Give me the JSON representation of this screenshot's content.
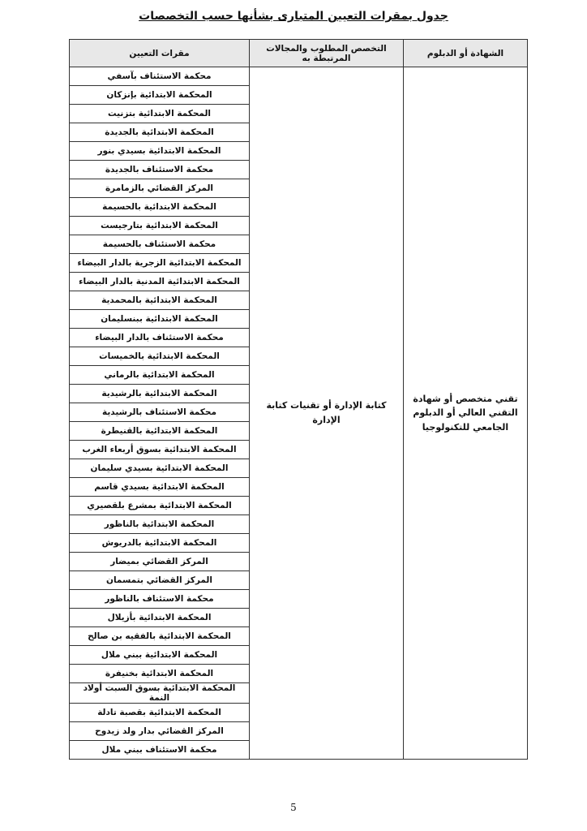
{
  "title": "جدول بمقرات التعيين المتبارى بشأنها حسب التخصصات",
  "table": {
    "headers": [
      "الشهادة أو الدبلوم",
      "التخصص المطلوب والمجالات المرتبطة به",
      "مقرات التعيين"
    ],
    "degree": "تقني متخصص أو شهادة التقني العالي أو الدبلوم الجامعي للتكنولوجيا",
    "specialty": "كتابة الإدارة أو تقنيات كتابة الإدارة",
    "locations": [
      "محكمة الاستئناف بآسفي",
      "المحكمة الابتدائية بإنزكان",
      "المحكمة الابتدائية بتزنيت",
      "المحكمة الابتدائية بالجديدة",
      "المحكمة الابتدائية بسيدي بنور",
      "محكمة الاستئناف بالجديدة",
      "المركز القضائي بالزمامرة",
      "المحكمة الابتدائية بالحسيمة",
      "المحكمة الابتدائية بتارجيست",
      "محكمة الاستئناف بالحسيمة",
      "المحكمة الابتدائية الزجرية بالدار البيضاء",
      "المحكمة الابتدائية المدنية بالدار البيضاء",
      "المحكمة الابتدائية بالمحمدية",
      "المحكمة الابتدائية ببنسليمان",
      "محكمة الاستئناف بالدار البيضاء",
      "المحكمة الابتدائية بالخميسات",
      "المحكمة الابتدائية بالرماني",
      "المحكمة الابتدائية بالرشيدية",
      "محكمة الاستئناف بالرشيدية",
      "المحكمة الابتدائية بالقنيطرة",
      "المحكمة الابتدائية بسوق أربعاء الغرب",
      "المحكمة الابتدائية بسيدي سليمان",
      "المحكمة الابتدائية بسيدي قاسم",
      "المحكمة الابتدائية بمشرع بلقصيري",
      "المحكمة الابتدائية بالناظور",
      "المحكمة الابتدائية بالدريوش",
      "المركز القضائي بميضار",
      "المركز القضائي بتمسمان",
      "محكمة الاستئناف بالناظور",
      "المحكمة الابتدائية بأزيلال",
      "المحكمة الابتدائية بالفقيه بن صالح",
      "المحكمة الابتدائية ببني ملال",
      "المحكمة الابتدائية بخنيفرة",
      "المحكمة الابتدائية بسوق السبت أولاد النمة",
      "المحكمة الابتدائية بقصبة تادلة",
      "المركز القضائي بدار ولد زيدوح",
      "محكمة الاستئناف ببني ملال"
    ]
  },
  "page_number": "5"
}
